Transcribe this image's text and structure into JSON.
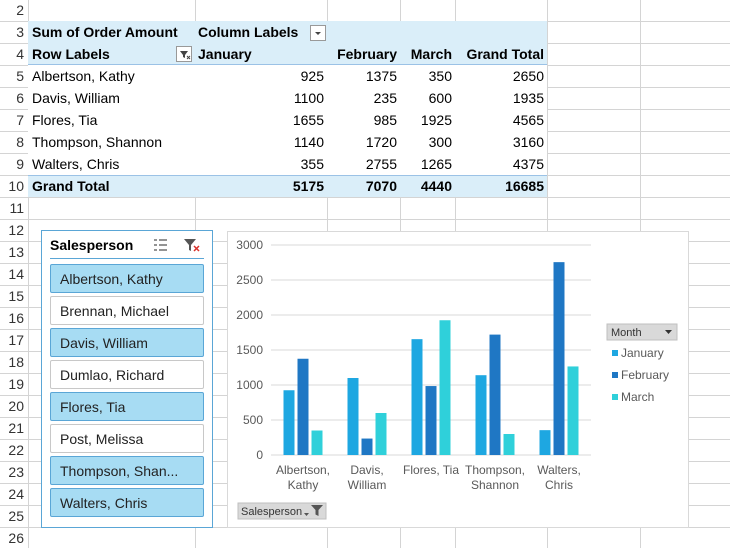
{
  "row_numbers": [
    2,
    3,
    4,
    5,
    6,
    7,
    8,
    9,
    10,
    11,
    12,
    13,
    14,
    15,
    16,
    17,
    18,
    19,
    20,
    21,
    22,
    23,
    24,
    25,
    26
  ],
  "pivot": {
    "value_field": "Sum of Order Amount",
    "column_field": "Column Labels",
    "row_field": "Row Labels",
    "columns": [
      "January",
      "February",
      "March",
      "Grand Total"
    ],
    "rows": [
      {
        "label": "Albertson, Kathy",
        "values": [
          925,
          1375,
          350,
          2650
        ]
      },
      {
        "label": "Davis, William",
        "values": [
          1100,
          235,
          600,
          1935
        ]
      },
      {
        "label": "Flores, Tia",
        "values": [
          1655,
          985,
          1925,
          4565
        ]
      },
      {
        "label": "Thompson, Shannon",
        "values": [
          1140,
          1720,
          300,
          3160
        ]
      },
      {
        "label": "Walters, Chris",
        "values": [
          355,
          2755,
          1265,
          4375
        ]
      }
    ],
    "total": {
      "label": "Grand Total",
      "values": [
        5175,
        7070,
        4440,
        16685
      ]
    }
  },
  "slicer": {
    "title": "Salesperson",
    "items": [
      {
        "label": "Albertson, Kathy",
        "selected": true
      },
      {
        "label": "Brennan, Michael",
        "selected": false
      },
      {
        "label": "Davis, William",
        "selected": true
      },
      {
        "label": "Dumlao, Richard",
        "selected": false
      },
      {
        "label": "Flores, Tia",
        "selected": true
      },
      {
        "label": "Post, Melissa",
        "selected": false
      },
      {
        "label": "Thompson, Shan...",
        "selected": true
      },
      {
        "label": "Walters, Chris",
        "selected": true
      }
    ]
  },
  "chart_data": {
    "type": "bar",
    "categories": [
      "Albertson, Kathy",
      "Davis, William",
      "Flores, Tia",
      "Thompson, Shannon",
      "Walters, Chris"
    ],
    "series": [
      {
        "name": "January",
        "color": "#1ea7e1",
        "values": [
          925,
          1100,
          1655,
          1140,
          355
        ]
      },
      {
        "name": "February",
        "color": "#1f77c4",
        "values": [
          1375,
          235,
          985,
          1720,
          2755
        ]
      },
      {
        "name": "March",
        "color": "#2fd0da",
        "values": [
          350,
          600,
          1925,
          300,
          1265
        ]
      }
    ],
    "ylim": [
      0,
      3000
    ],
    "yticks": [
      0,
      500,
      1000,
      1500,
      2000,
      2500,
      3000
    ],
    "grid": true,
    "legend": {
      "title": "Month",
      "position": "right"
    },
    "field_button": "Salesperson"
  }
}
